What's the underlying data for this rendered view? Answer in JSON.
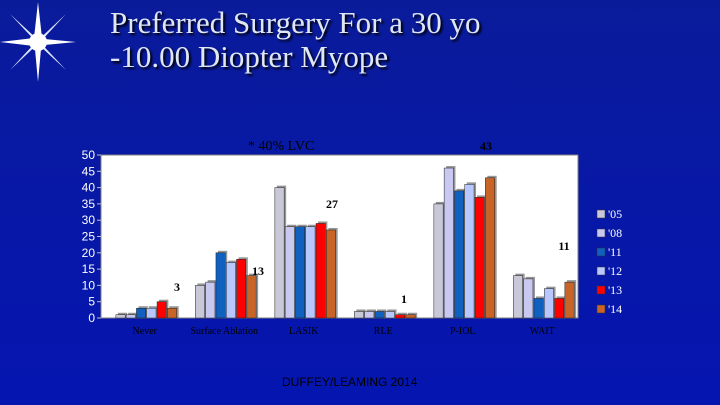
{
  "slide": {
    "title_line1": "Preferred Surgery For a 30 yo",
    "title_line2": "-10.00 Diopter Myope",
    "footer": "DUFFEY/LEAMING 2014"
  },
  "chart_data": {
    "type": "bar",
    "categories": [
      "Never",
      "Surface Ablation",
      "LASIK",
      "RLE",
      "P-IOL",
      "WAIT"
    ],
    "series": [
      {
        "name": "'05",
        "color": "#c8c8d8",
        "values": [
          1,
          10,
          40,
          2,
          35,
          13
        ]
      },
      {
        "name": "'08",
        "color": "#c8c8f0",
        "values": [
          1,
          11,
          28,
          2,
          46,
          12
        ]
      },
      {
        "name": "'11",
        "color": "#1060c0",
        "values": [
          3,
          20,
          28,
          2,
          39,
          6
        ]
      },
      {
        "name": "'12",
        "color": "#b8c8ff",
        "values": [
          3,
          17,
          28,
          2,
          41,
          9
        ]
      },
      {
        "name": "'13",
        "color": "#ff0000",
        "values": [
          5,
          18,
          29,
          1,
          37,
          6
        ]
      },
      {
        "name": "'14",
        "color": "#c86428",
        "values": [
          3,
          13,
          27,
          1,
          43,
          11
        ]
      }
    ],
    "data_labels": [
      {
        "series": "'14",
        "category": "Never",
        "text": "3"
      },
      {
        "series": "'14",
        "category": "Surface Ablation",
        "text": "13"
      },
      {
        "series": "'14",
        "category": "LASIK",
        "text": "27"
      },
      {
        "series": "'14",
        "category": "RLE",
        "text": "1"
      },
      {
        "series": "'14",
        "category": "P-IOL",
        "text": "43"
      },
      {
        "series": "'14",
        "category": "WAIT",
        "text": "11"
      }
    ],
    "annotation": "* 40% LVC",
    "ylim": [
      0,
      50
    ],
    "yticks": [
      0,
      5,
      10,
      15,
      20,
      25,
      30,
      35,
      40,
      45,
      50
    ],
    "legend_position": "right",
    "colors": {
      "plot_background": "#ffffff",
      "text": "#000000",
      "tick_text": "#ffffff"
    }
  }
}
